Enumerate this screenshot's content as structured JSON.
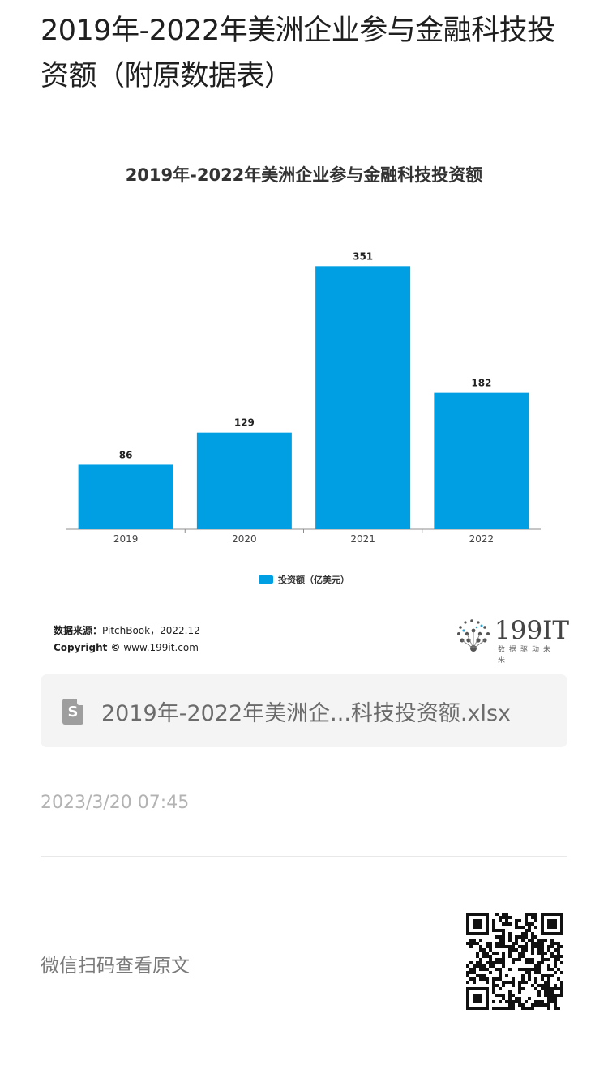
{
  "article": {
    "title": "2019年-2022年美洲企业参与金融科技投资额（附原数据表）"
  },
  "chart_data": {
    "type": "bar",
    "title": "2019年-2022年美洲企业参与金融科技投资额",
    "categories": [
      "2019",
      "2020",
      "2021",
      "2022"
    ],
    "series": [
      {
        "name": "投资额（亿美元）",
        "values": [
          86,
          129,
          351,
          182
        ],
        "color": "#009fe3"
      }
    ],
    "data_labels": [
      "86",
      "129",
      "351",
      "182"
    ],
    "ylim": [
      0,
      400
    ],
    "grid": false,
    "legend": "bottom-center"
  },
  "chart_footer": {
    "source_label": "数据来源：",
    "source_value": "PitchBook，2022.12",
    "copyright_label": "Copyright ©",
    "copyright_value": " www.199it.com",
    "brand_name": "199IT",
    "brand_tagline": "数据驱动未来",
    "brand_logo_icon": "dandelion-logo-icon"
  },
  "attachment": {
    "file_icon": "spreadsheet-file-icon",
    "file_icon_letter": "S",
    "file_name": "2019年-2022年美洲企...科技投资额.xlsx"
  },
  "meta": {
    "timestamp": "2023/3/20 07:45"
  },
  "footer": {
    "prompt": "微信扫码查看原文",
    "qr_icon": "qr-code-icon"
  }
}
